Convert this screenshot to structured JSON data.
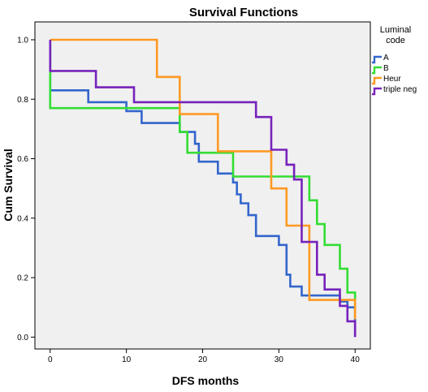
{
  "chart_data": {
    "type": "line",
    "step": true,
    "title": "Survival Functions",
    "xlabel": "DFS months",
    "ylabel": "Cum Survival",
    "xlim": [
      -2,
      42
    ],
    "ylim": [
      -0.04,
      1.06
    ],
    "x_ticks": [
      0,
      10,
      20,
      30,
      40
    ],
    "y_ticks": [
      0.0,
      0.2,
      0.4,
      0.6,
      0.8,
      1.0
    ],
    "y_tick_labels": [
      "0.0",
      "0.2",
      "0.4",
      "0.6",
      "0.8",
      "1.0"
    ],
    "grid": false,
    "legend": {
      "title_lines": [
        "Luminal",
        "code"
      ],
      "placement": "right"
    },
    "series": [
      {
        "name": "A",
        "color": "#3366cc",
        "points": [
          [
            0,
            1.0
          ],
          [
            0,
            0.83
          ],
          [
            5,
            0.83
          ],
          [
            5,
            0.79
          ],
          [
            10,
            0.79
          ],
          [
            10,
            0.76
          ],
          [
            12,
            0.76
          ],
          [
            12,
            0.72
          ],
          [
            17,
            0.72
          ],
          [
            17,
            0.69
          ],
          [
            19,
            0.69
          ],
          [
            19,
            0.65
          ],
          [
            19.5,
            0.65
          ],
          [
            19.5,
            0.59
          ],
          [
            22,
            0.59
          ],
          [
            22,
            0.55
          ],
          [
            24,
            0.55
          ],
          [
            24,
            0.52
          ],
          [
            24.5,
            0.52
          ],
          [
            24.5,
            0.48
          ],
          [
            25,
            0.48
          ],
          [
            25,
            0.45
          ],
          [
            26,
            0.45
          ],
          [
            26,
            0.41
          ],
          [
            27,
            0.41
          ],
          [
            27,
            0.34
          ],
          [
            30,
            0.34
          ],
          [
            30,
            0.31
          ],
          [
            31,
            0.31
          ],
          [
            31,
            0.21
          ],
          [
            31.5,
            0.21
          ],
          [
            31.5,
            0.17
          ],
          [
            33,
            0.17
          ],
          [
            33,
            0.14
          ],
          [
            38,
            0.14
          ],
          [
            38,
            0.12
          ],
          [
            39,
            0.12
          ],
          [
            39,
            0.1
          ],
          [
            40,
            0.1
          ],
          [
            40,
            0.0
          ]
        ]
      },
      {
        "name": "B",
        "color": "#33dd33",
        "points": [
          [
            0,
            1.0
          ],
          [
            0,
            0.77
          ],
          [
            17,
            0.77
          ],
          [
            17,
            0.69
          ],
          [
            18,
            0.69
          ],
          [
            18,
            0.62
          ],
          [
            22,
            0.62
          ],
          [
            22,
            0.62
          ],
          [
            24,
            0.62
          ],
          [
            24,
            0.54
          ],
          [
            34,
            0.54
          ],
          [
            34,
            0.46
          ],
          [
            35,
            0.46
          ],
          [
            35,
            0.38
          ],
          [
            36,
            0.38
          ],
          [
            36,
            0.31
          ],
          [
            38,
            0.31
          ],
          [
            38,
            0.23
          ],
          [
            39,
            0.23
          ],
          [
            39,
            0.15
          ],
          [
            40,
            0.15
          ],
          [
            40,
            0.06
          ]
        ]
      },
      {
        "name": "Heur",
        "color": "#ff9922",
        "points": [
          [
            0,
            1.0
          ],
          [
            14,
            1.0
          ],
          [
            14,
            0.875
          ],
          [
            17,
            0.875
          ],
          [
            17,
            0.75
          ],
          [
            22,
            0.75
          ],
          [
            22,
            0.625
          ],
          [
            29,
            0.625
          ],
          [
            29,
            0.5
          ],
          [
            31,
            0.5
          ],
          [
            31,
            0.375
          ],
          [
            34,
            0.375
          ],
          [
            34,
            0.125
          ],
          [
            40,
            0.125
          ],
          [
            40,
            0.06
          ]
        ]
      },
      {
        "name": "triple neg",
        "color": "#7722bb",
        "points": [
          [
            0,
            1.0
          ],
          [
            0,
            0.895
          ],
          [
            6,
            0.895
          ],
          [
            6,
            0.84
          ],
          [
            11,
            0.84
          ],
          [
            11,
            0.79
          ],
          [
            27,
            0.79
          ],
          [
            27,
            0.74
          ],
          [
            29,
            0.74
          ],
          [
            29,
            0.63
          ],
          [
            31,
            0.63
          ],
          [
            31,
            0.58
          ],
          [
            32,
            0.58
          ],
          [
            32,
            0.53
          ],
          [
            33,
            0.53
          ],
          [
            33,
            0.32
          ],
          [
            35,
            0.32
          ],
          [
            35,
            0.21
          ],
          [
            36,
            0.21
          ],
          [
            36,
            0.16
          ],
          [
            38,
            0.16
          ],
          [
            38,
            0.105
          ],
          [
            39,
            0.105
          ],
          [
            39,
            0.053
          ],
          [
            40,
            0.053
          ],
          [
            40,
            0.0
          ]
        ]
      }
    ]
  }
}
